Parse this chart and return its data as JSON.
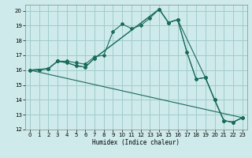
{
  "xlabel": "Humidex (Indice chaleur)",
  "bg_color": "#ceeaea",
  "grid_color": "#a0cccc",
  "line_color": "#1a6b5a",
  "xlim": [
    -0.5,
    23.5
  ],
  "ylim": [
    12,
    20.4
  ],
  "yticks": [
    12,
    13,
    14,
    15,
    16,
    17,
    18,
    19,
    20
  ],
  "xticks": [
    0,
    1,
    2,
    3,
    4,
    5,
    6,
    7,
    8,
    9,
    10,
    11,
    12,
    13,
    14,
    15,
    16,
    17,
    18,
    19,
    20,
    21,
    22,
    23
  ],
  "line1_x": [
    0,
    1,
    2,
    3,
    4,
    5,
    6,
    7,
    8,
    9,
    10,
    11,
    12,
    13,
    14,
    15,
    16,
    17,
    18,
    19,
    20,
    21,
    22,
    23
  ],
  "line1_y": [
    16.0,
    16.0,
    16.1,
    16.6,
    16.6,
    16.5,
    16.4,
    16.9,
    17.0,
    18.6,
    19.1,
    18.8,
    19.0,
    19.5,
    20.1,
    19.2,
    19.4,
    17.2,
    15.4,
    15.5,
    14.0,
    12.6,
    12.5,
    12.8
  ],
  "line2_x": [
    0,
    2,
    3,
    4,
    5,
    6,
    7,
    14,
    15,
    16,
    17,
    18,
    19,
    20,
    21,
    22,
    23
  ],
  "line2_y": [
    16.0,
    16.1,
    16.6,
    16.5,
    16.3,
    16.2,
    16.8,
    20.1,
    19.2,
    19.4,
    17.2,
    15.4,
    15.5,
    14.0,
    12.6,
    12.5,
    12.8
  ],
  "line3_x": [
    0,
    23
  ],
  "line3_y": [
    16.0,
    12.8
  ],
  "line4_x": [
    0,
    2,
    3,
    4,
    5,
    6,
    7,
    14,
    15,
    16,
    19,
    20,
    21,
    22,
    23
  ],
  "line4_y": [
    16.0,
    16.1,
    16.6,
    16.5,
    16.3,
    16.2,
    16.8,
    20.1,
    19.2,
    19.4,
    15.5,
    14.0,
    12.6,
    12.5,
    12.8
  ]
}
